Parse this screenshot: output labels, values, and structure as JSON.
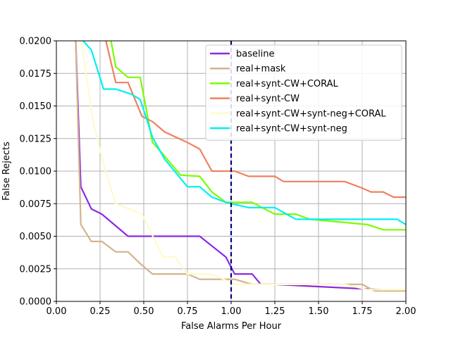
{
  "chart_data": {
    "type": "line",
    "xlabel": "False Alarms Per Hour",
    "ylabel": "False Rejects",
    "xlim": [
      0.0,
      2.0
    ],
    "ylim": [
      0.0,
      0.02
    ],
    "grid": true,
    "legend_position": "upper-right",
    "x_ticks": [
      "0.00",
      "0.25",
      "0.50",
      "0.75",
      "1.00",
      "1.25",
      "1.50",
      "1.75",
      "2.00"
    ],
    "x_tick_values": [
      0,
      0.25,
      0.5,
      0.75,
      1.0,
      1.25,
      1.5,
      1.75,
      2.0
    ],
    "y_ticks": [
      "0.0000",
      "0.0025",
      "0.0050",
      "0.0075",
      "0.0100",
      "0.0125",
      "0.0150",
      "0.0175",
      "0.0200"
    ],
    "y_tick_values": [
      0,
      0.0025,
      0.005,
      0.0075,
      0.01,
      0.0125,
      0.015,
      0.0175,
      0.02
    ],
    "vertical_reference_line": {
      "x": 1.0,
      "color": "#000080",
      "style": "dashed"
    },
    "series": [
      {
        "name": "baseline",
        "color": "#8b2be2",
        "x": [
          0.11,
          0.14,
          0.2,
          0.26,
          0.41,
          0.82,
          0.97,
          1.02,
          1.12,
          1.17,
          1.25,
          2.0
        ],
        "y": [
          0.0202,
          0.0088,
          0.0071,
          0.0067,
          0.005,
          0.005,
          0.0034,
          0.0021,
          0.0021,
          0.0013,
          0.0013,
          0.0008
        ]
      },
      {
        "name": "real+mask",
        "color": "#d2b48c",
        "x": [
          0.11,
          0.14,
          0.2,
          0.26,
          0.34,
          0.41,
          0.48,
          0.55,
          0.75,
          0.82,
          1.02,
          1.12,
          1.25,
          1.75,
          1.82,
          2.0
        ],
        "y": [
          0.0202,
          0.0059,
          0.0046,
          0.0046,
          0.0038,
          0.0038,
          0.0029,
          0.0021,
          0.0021,
          0.0017,
          0.0017,
          0.0013,
          0.0013,
          0.0013,
          0.0008,
          0.0008
        ]
      },
      {
        "name": "real+synt-CW+CORAL",
        "color": "#7cfc00",
        "x": [
          0.31,
          0.34,
          0.41,
          0.48,
          0.55,
          0.61,
          0.71,
          0.82,
          0.89,
          0.97,
          1.02,
          1.12,
          1.25,
          1.37,
          1.45,
          1.78,
          1.87,
          2.0
        ],
        "y": [
          0.0202,
          0.018,
          0.0172,
          0.0172,
          0.0122,
          0.0113,
          0.0097,
          0.0096,
          0.0084,
          0.0076,
          0.0076,
          0.0076,
          0.0067,
          0.0067,
          0.0063,
          0.0059,
          0.0055,
          0.0055
        ]
      },
      {
        "name": "real+synt-CW",
        "color": "#f08060",
        "x": [
          0.28,
          0.34,
          0.41,
          0.49,
          0.55,
          0.62,
          0.75,
          0.82,
          0.89,
          1.02,
          1.1,
          1.25,
          1.3,
          1.65,
          1.75,
          1.8,
          1.87,
          1.93,
          2.0
        ],
        "y": [
          0.0202,
          0.0168,
          0.0168,
          0.0142,
          0.0138,
          0.013,
          0.0122,
          0.0117,
          0.01,
          0.01,
          0.0096,
          0.0096,
          0.0092,
          0.0092,
          0.0087,
          0.0084,
          0.0084,
          0.008,
          0.008
        ]
      },
      {
        "name": "real+synt-CW+synt-neg+CORAL",
        "color": "#fffacd",
        "x": [
          0.14,
          0.21,
          0.27,
          0.34,
          0.49,
          0.61,
          0.68,
          0.75,
          0.89,
          1.02,
          1.25,
          1.65,
          1.78,
          1.87,
          2.0
        ],
        "y": [
          0.0202,
          0.0138,
          0.0105,
          0.0075,
          0.0067,
          0.0034,
          0.0034,
          0.0021,
          0.0021,
          0.0013,
          0.0013,
          0.0013,
          0.0009,
          0.0009,
          0.0009
        ]
      },
      {
        "name": "real+synt-CW+synt-neg",
        "color": "#00f0f0",
        "x": [
          0.14,
          0.2,
          0.27,
          0.34,
          0.43,
          0.48,
          0.55,
          0.62,
          0.75,
          0.82,
          0.89,
          0.97,
          1.1,
          1.25,
          1.37,
          1.5,
          1.75,
          1.95,
          2.0
        ],
        "y": [
          0.0202,
          0.0193,
          0.0163,
          0.0163,
          0.0159,
          0.0155,
          0.0126,
          0.0109,
          0.0088,
          0.0088,
          0.008,
          0.0076,
          0.0072,
          0.0072,
          0.0063,
          0.0063,
          0.0063,
          0.0063,
          0.0059
        ]
      }
    ]
  }
}
